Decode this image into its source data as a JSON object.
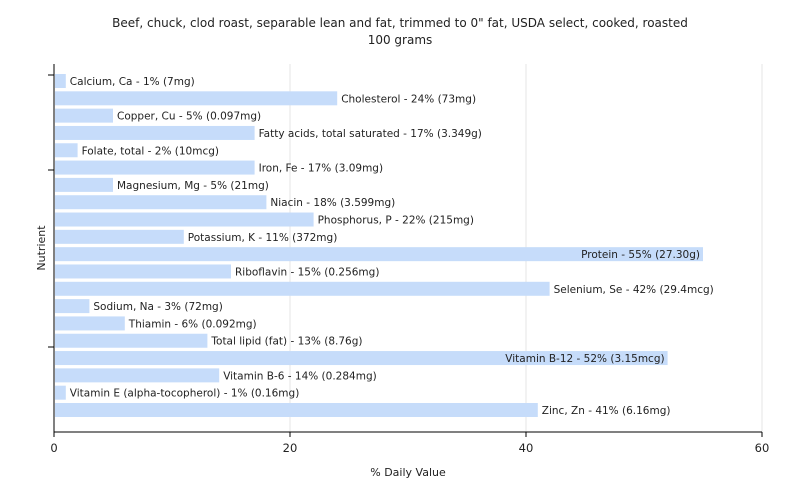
{
  "chart_data": {
    "type": "bar",
    "orientation": "horizontal",
    "title": "Beef, chuck, clod roast, separable lean and fat, trimmed to 0\" fat, USDA select, cooked, roasted",
    "subtitle": "100 grams",
    "xlabel": "% Daily Value",
    "ylabel": "Nutrient",
    "xlim": [
      0,
      60
    ],
    "xticks": [
      0,
      20,
      40,
      60
    ],
    "grid": true,
    "bar_color": "#c6dcfa",
    "bars": [
      {
        "label": "Calcium, Ca - 1% (7mg)",
        "value": 1
      },
      {
        "label": "Cholesterol - 24% (73mg)",
        "value": 24
      },
      {
        "label": "Copper, Cu - 5% (0.097mg)",
        "value": 5
      },
      {
        "label": "Fatty acids, total saturated - 17% (3.349g)",
        "value": 17
      },
      {
        "label": "Folate, total - 2% (10mcg)",
        "value": 2
      },
      {
        "label": "Iron, Fe - 17% (3.09mg)",
        "value": 17
      },
      {
        "label": "Magnesium, Mg - 5% (21mg)",
        "value": 5
      },
      {
        "label": "Niacin - 18% (3.599mg)",
        "value": 18
      },
      {
        "label": "Phosphorus, P - 22% (215mg)",
        "value": 22
      },
      {
        "label": "Potassium, K - 11% (372mg)",
        "value": 11
      },
      {
        "label": "Protein - 55% (27.30g)",
        "value": 55
      },
      {
        "label": "Riboflavin - 15% (0.256mg)",
        "value": 15
      },
      {
        "label": "Selenium, Se - 42% (29.4mcg)",
        "value": 42
      },
      {
        "label": "Sodium, Na - 3% (72mg)",
        "value": 3
      },
      {
        "label": "Thiamin - 6% (0.092mg)",
        "value": 6
      },
      {
        "label": "Total lipid (fat) - 13% (8.76g)",
        "value": 13
      },
      {
        "label": "Vitamin B-12 - 52% (3.15mcg)",
        "value": 52
      },
      {
        "label": "Vitamin B-6 - 14% (0.284mg)",
        "value": 14
      },
      {
        "label": "Vitamin E (alpha-tocopherol) - 1% (0.16mg)",
        "value": 1
      },
      {
        "label": "Zinc, Zn - 41% (6.16mg)",
        "value": 41
      }
    ]
  }
}
